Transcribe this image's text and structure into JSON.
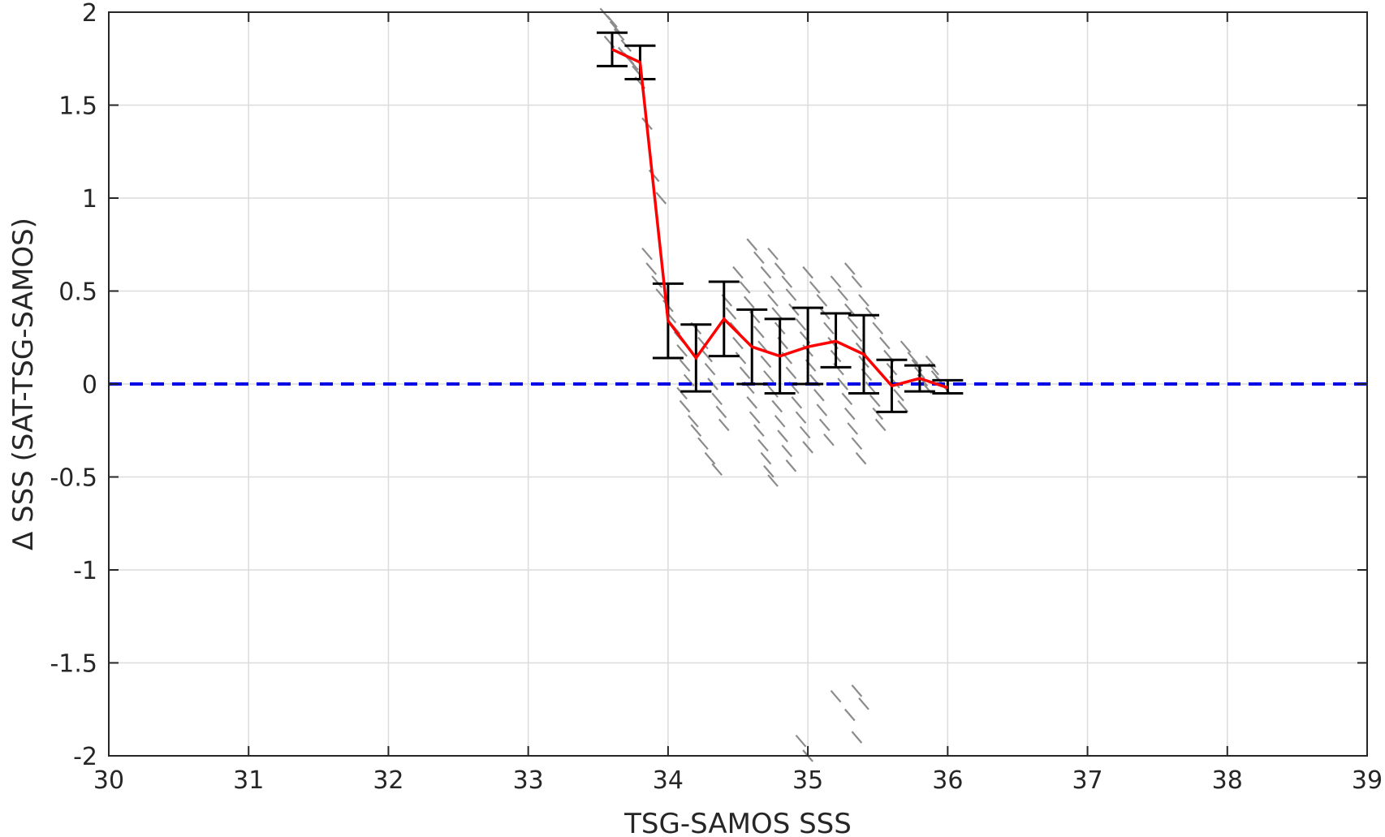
{
  "chart_data": {
    "type": "scatter",
    "xlabel": "TSG-SAMOS SSS",
    "ylabel": "Δ SSS (SAT-TSG-SAMOS)",
    "xlim": [
      30,
      39
    ],
    "ylim": [
      -2,
      2
    ],
    "xticks": [
      30,
      31,
      32,
      33,
      34,
      35,
      36,
      37,
      38,
      39
    ],
    "yticks": [
      -2,
      -1.5,
      -1,
      -0.5,
      0,
      0.5,
      1,
      1.5,
      2
    ],
    "ytick_labels": [
      "-2",
      "-1.5",
      "-1",
      "-0.5",
      "0",
      "0.5",
      "1",
      "1.5",
      "2"
    ],
    "grid": true,
    "colors": {
      "scatter": "#8c8c8c",
      "mean_line": "#ff0000",
      "errorbar": "#000000",
      "zero_line": "#0000e6",
      "grid": "#dcdcdc"
    },
    "reference_line": {
      "y": 0,
      "style": "dashed"
    },
    "binned_mean": {
      "x": [
        33.6,
        33.8,
        34.0,
        34.2,
        34.4,
        34.6,
        34.8,
        35.0,
        35.2,
        35.4,
        35.6,
        35.8,
        36.0
      ],
      "y": [
        1.8,
        1.73,
        0.34,
        0.14,
        0.35,
        0.2,
        0.15,
        0.2,
        0.23,
        0.16,
        -0.01,
        0.03,
        -0.02
      ],
      "low": [
        1.71,
        1.64,
        0.14,
        -0.04,
        0.15,
        0.0,
        -0.05,
        0.0,
        0.09,
        -0.05,
        -0.15,
        -0.04,
        -0.05
      ],
      "high": [
        1.89,
        1.82,
        0.54,
        0.32,
        0.55,
        0.4,
        0.35,
        0.41,
        0.38,
        0.37,
        0.13,
        0.1,
        0.02
      ]
    },
    "scatter_points": [
      [
        33.55,
        1.99
      ],
      [
        33.6,
        1.95
      ],
      [
        33.62,
        1.92
      ],
      [
        33.65,
        1.88
      ],
      [
        33.58,
        1.84
      ],
      [
        33.7,
        1.82
      ],
      [
        33.68,
        1.78
      ],
      [
        33.72,
        1.75
      ],
      [
        33.75,
        1.72
      ],
      [
        33.78,
        1.68
      ],
      [
        33.8,
        1.62
      ],
      [
        33.85,
        1.4
      ],
      [
        33.9,
        1.12
      ],
      [
        33.95,
        1.0
      ],
      [
        33.85,
        0.7
      ],
      [
        33.88,
        0.62
      ],
      [
        33.92,
        0.55
      ],
      [
        33.95,
        0.48
      ],
      [
        34.0,
        0.42
      ],
      [
        34.02,
        0.36
      ],
      [
        34.05,
        0.3
      ],
      [
        34.08,
        0.25
      ],
      [
        34.1,
        0.18
      ],
      [
        34.12,
        0.1
      ],
      [
        34.15,
        0.02
      ],
      [
        34.1,
        -0.05
      ],
      [
        34.12,
        -0.12
      ],
      [
        34.18,
        -0.2
      ],
      [
        34.2,
        -0.25
      ],
      [
        34.25,
        -0.32
      ],
      [
        34.3,
        -0.4
      ],
      [
        34.35,
        -0.46
      ],
      [
        34.2,
        0.3
      ],
      [
        34.25,
        0.22
      ],
      [
        34.28,
        0.15
      ],
      [
        34.3,
        0.08
      ],
      [
        34.32,
        0.0
      ],
      [
        34.35,
        -0.08
      ],
      [
        34.38,
        -0.15
      ],
      [
        34.4,
        -0.22
      ],
      [
        34.42,
        0.45
      ],
      [
        34.45,
        0.38
      ],
      [
        34.48,
        0.3
      ],
      [
        34.5,
        0.22
      ],
      [
        34.52,
        0.14
      ],
      [
        34.55,
        0.06
      ],
      [
        34.58,
        -0.02
      ],
      [
        34.6,
        -0.1
      ],
      [
        34.62,
        -0.18
      ],
      [
        34.65,
        -0.25
      ],
      [
        34.68,
        -0.33
      ],
      [
        34.7,
        -0.4
      ],
      [
        34.72,
        -0.47
      ],
      [
        34.75,
        -0.52
      ],
      [
        34.5,
        0.6
      ],
      [
        34.55,
        0.52
      ],
      [
        34.58,
        0.44
      ],
      [
        34.62,
        0.36
      ],
      [
        34.65,
        0.28
      ],
      [
        34.68,
        0.2
      ],
      [
        34.7,
        0.12
      ],
      [
        34.72,
        0.04
      ],
      [
        34.75,
        -0.04
      ],
      [
        34.78,
        -0.12
      ],
      [
        34.8,
        -0.2
      ],
      [
        34.82,
        -0.28
      ],
      [
        34.85,
        -0.36
      ],
      [
        34.88,
        -0.44
      ],
      [
        34.6,
        0.75
      ],
      [
        34.65,
        0.68
      ],
      [
        34.7,
        0.6
      ],
      [
        34.72,
        0.52
      ],
      [
        34.75,
        0.45
      ],
      [
        34.78,
        0.38
      ],
      [
        34.8,
        0.3
      ],
      [
        34.82,
        0.22
      ],
      [
        34.85,
        0.14
      ],
      [
        34.88,
        0.06
      ],
      [
        34.9,
        -0.02
      ],
      [
        34.92,
        -0.1
      ],
      [
        34.95,
        -0.18
      ],
      [
        34.98,
        -0.26
      ],
      [
        35.0,
        -0.34
      ],
      [
        34.75,
        0.7
      ],
      [
        34.8,
        0.62
      ],
      [
        34.85,
        0.55
      ],
      [
        34.88,
        0.48
      ],
      [
        34.9,
        0.4
      ],
      [
        34.95,
        0.32
      ],
      [
        34.98,
        0.25
      ],
      [
        35.0,
        0.18
      ],
      [
        35.02,
        0.1
      ],
      [
        35.05,
        0.02
      ],
      [
        35.08,
        -0.06
      ],
      [
        35.1,
        -0.14
      ],
      [
        35.12,
        -0.22
      ],
      [
        35.15,
        -0.3
      ],
      [
        35.0,
        0.6
      ],
      [
        35.05,
        0.52
      ],
      [
        35.1,
        0.45
      ],
      [
        35.12,
        0.38
      ],
      [
        35.15,
        0.3
      ],
      [
        35.18,
        0.22
      ],
      [
        35.2,
        0.15
      ],
      [
        35.22,
        0.08
      ],
      [
        35.25,
        0.0
      ],
      [
        35.28,
        -0.08
      ],
      [
        35.3,
        -0.16
      ],
      [
        35.32,
        -0.24
      ],
      [
        35.35,
        -0.32
      ],
      [
        35.38,
        -0.4
      ],
      [
        35.2,
        0.55
      ],
      [
        35.25,
        0.48
      ],
      [
        35.3,
        0.4
      ],
      [
        35.32,
        0.33
      ],
      [
        35.35,
        0.26
      ],
      [
        35.38,
        0.19
      ],
      [
        35.4,
        0.12
      ],
      [
        35.42,
        0.05
      ],
      [
        35.45,
        -0.02
      ],
      [
        35.48,
        -0.09
      ],
      [
        35.5,
        -0.16
      ],
      [
        35.52,
        -0.22
      ],
      [
        35.3,
        0.62
      ],
      [
        35.35,
        0.55
      ],
      [
        35.4,
        0.45
      ],
      [
        35.45,
        0.38
      ],
      [
        35.5,
        0.3
      ],
      [
        35.55,
        0.22
      ],
      [
        35.58,
        0.15
      ],
      [
        35.6,
        0.08
      ],
      [
        35.62,
        0.01
      ],
      [
        35.65,
        -0.06
      ],
      [
        35.68,
        -0.12
      ],
      [
        35.7,
        0.2
      ],
      [
        35.75,
        0.14
      ],
      [
        35.78,
        0.1
      ],
      [
        35.8,
        0.06
      ],
      [
        35.82,
        0.02
      ],
      [
        35.85,
        -0.02
      ],
      [
        35.88,
        0.12
      ],
      [
        35.9,
        0.08
      ],
      [
        35.92,
        0.04
      ],
      [
        35.95,
        0.01
      ],
      [
        35.98,
        -0.02
      ],
      [
        35.2,
        -1.68
      ],
      [
        35.3,
        -1.78
      ],
      [
        35.35,
        -1.9
      ],
      [
        35.35,
        -1.65
      ],
      [
        35.4,
        -1.72
      ],
      [
        34.95,
        -1.92
      ],
      [
        35.0,
        -2.0
      ]
    ]
  }
}
